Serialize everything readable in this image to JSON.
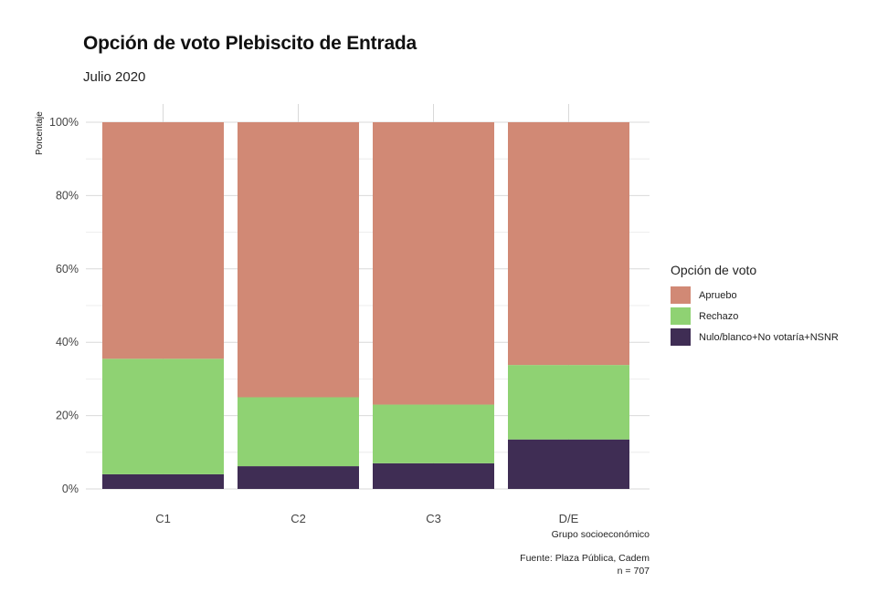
{
  "chart_data": {
    "type": "bar",
    "stacked": true,
    "title": "Opción de voto Plebiscito de Entrada",
    "subtitle": "Julio 2020",
    "xlabel": "Grupo socioeconómico",
    "ylabel": "Porcentaje",
    "categories": [
      "C1",
      "C2",
      "C3",
      "D/E"
    ],
    "ylim": [
      0,
      100
    ],
    "yticks": [
      0,
      20,
      40,
      60,
      80,
      100
    ],
    "ytick_labels": [
      "0%",
      "20%",
      "40%",
      "60%",
      "80%",
      "100%"
    ],
    "grid": true,
    "legend": {
      "title": "Opción de voto",
      "placement": "right"
    },
    "series": [
      {
        "name": "Nulo/blanco+No votaría+NSNR",
        "color": "#3f2d54",
        "values": [
          4,
          6.2,
          7,
          13.5
        ]
      },
      {
        "name": "Rechazo",
        "color": "#8fd273",
        "values": [
          31.5,
          18.8,
          16,
          20.3
        ]
      },
      {
        "name": "Apruebo",
        "color": "#d18975",
        "values": [
          64.5,
          75,
          77,
          66.2
        ]
      }
    ],
    "legend_order": [
      2,
      1,
      0
    ],
    "caption_lines": [
      "Fuente: Plaza Pública, Cadem",
      "n = 707"
    ]
  }
}
